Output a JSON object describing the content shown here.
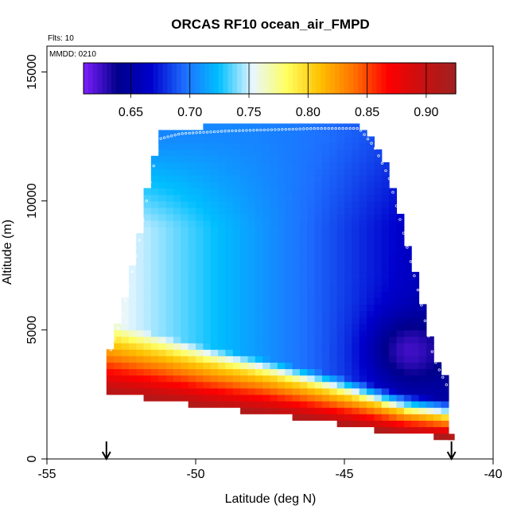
{
  "chart_data": {
    "type": "heatmap",
    "title": "ORCAS RF10 ocean_air_FMPD",
    "notes": {
      "flights": "Flts: 10",
      "date": "MMDD: 0210"
    },
    "xlabel": "Latitude (deg N)",
    "ylabel": "Altitude (m)",
    "xlim": [
      -55,
      -40
    ],
    "ylim": [
      0,
      16000
    ],
    "x_ticks": [
      -55,
      -50,
      -45,
      -40
    ],
    "x_tick_labels": [
      "-55",
      "-50",
      "-45",
      "-40"
    ],
    "y_ticks": [
      0,
      5000,
      10000,
      15000
    ],
    "y_tick_labels": [
      "0",
      "5000",
      "10000",
      "15000"
    ],
    "colorbar": {
      "range": [
        0.61,
        0.925
      ],
      "ticks": [
        0.65,
        0.7,
        0.75,
        0.8,
        0.85,
        0.9
      ],
      "tick_labels": [
        "0.65",
        "0.70",
        "0.75",
        "0.80",
        "0.85",
        "0.90"
      ],
      "colors": [
        "#7f1fff",
        "#00008b",
        "#0000cd",
        "#1e6fff",
        "#00bfff",
        "#e8f6ff",
        "#ffff60",
        "#ffc000",
        "#ff7000",
        "#ff0000",
        "#c81010",
        "#a02020"
      ]
    },
    "arrows_latitude": [
      -53.0,
      -41.4
    ],
    "domain": {
      "lat_min": -53.0,
      "lat_max": -41.5,
      "bottom_boundary": [
        {
          "lat": -53.0,
          "alt": 2600
        },
        {
          "lat": -51.0,
          "alt": 2300
        },
        {
          "lat": -49.5,
          "alt": 2050
        },
        {
          "lat": -47.5,
          "alt": 1800
        },
        {
          "lat": -46.0,
          "alt": 1550
        },
        {
          "lat": -44.5,
          "alt": 1300
        },
        {
          "lat": -43.0,
          "alt": 1000
        },
        {
          "lat": -41.5,
          "alt": 900
        }
      ],
      "top_boundary": [
        {
          "lat": -53.0,
          "alt": 3800
        },
        {
          "lat": -52.6,
          "alt": 5200
        },
        {
          "lat": -52.2,
          "alt": 7000
        },
        {
          "lat": -51.9,
          "alt": 8500
        },
        {
          "lat": -51.7,
          "alt": 9800
        },
        {
          "lat": -51.5,
          "alt": 11000
        },
        {
          "lat": -51.2,
          "alt": 12500
        },
        {
          "lat": -50.5,
          "alt": 12700
        },
        {
          "lat": -49.0,
          "alt": 12800
        },
        {
          "lat": -46.0,
          "alt": 12900
        },
        {
          "lat": -44.5,
          "alt": 12900
        },
        {
          "lat": -44.0,
          "alt": 12200
        },
        {
          "lat": -43.5,
          "alt": 11000
        },
        {
          "lat": -43.0,
          "alt": 8800
        },
        {
          "lat": -42.5,
          "alt": 6500
        },
        {
          "lat": -42.0,
          "alt": 4000
        },
        {
          "lat": -41.5,
          "alt": 2800
        }
      ]
    },
    "notable_points": [
      {
        "lat": -41.4,
        "alt": 850,
        "value": 0.91
      }
    ],
    "value_structure": {
      "upper_troposphere": 0.7,
      "mid_west": 0.76,
      "mid_east": 0.65,
      "east_core_min": 0.62,
      "boundary_layer_top": 0.8,
      "boundary_layer_bottom": 0.91
    }
  }
}
